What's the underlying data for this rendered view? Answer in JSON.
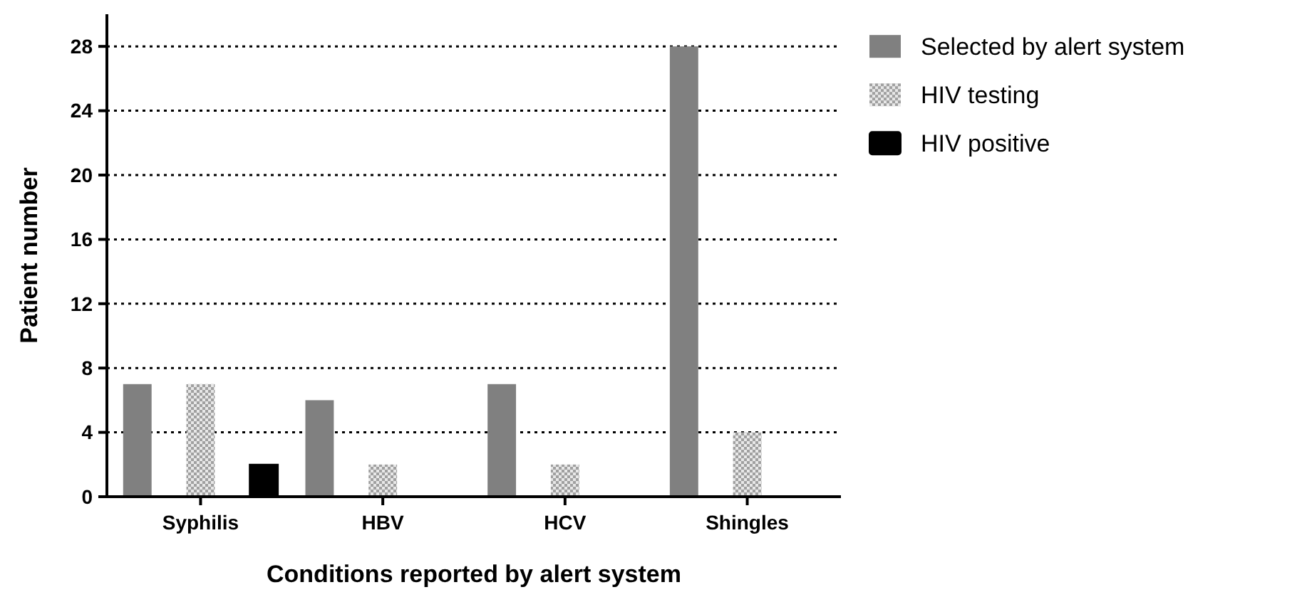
{
  "chart_data": {
    "type": "bar",
    "xlabel": "Conditions reported by alert system",
    "ylabel": "Patient number",
    "categories": [
      "Syphilis",
      "HBV",
      "HCV",
      "Shingles"
    ],
    "series": [
      {
        "name": "Selected by alert system",
        "color": "#808080",
        "values": [
          7,
          6,
          7,
          28
        ]
      },
      {
        "name": "HIV testing",
        "color": "#a0a0a0",
        "values": [
          7,
          2,
          2,
          4
        ]
      },
      {
        "name": "HIV positive",
        "color": "#000000",
        "values": [
          2,
          0,
          0,
          0
        ]
      }
    ],
    "ylim": [
      0,
      30
    ],
    "yticks": [
      0,
      4,
      8,
      12,
      16,
      20,
      24,
      28
    ],
    "grid": "y",
    "legend": "right"
  }
}
